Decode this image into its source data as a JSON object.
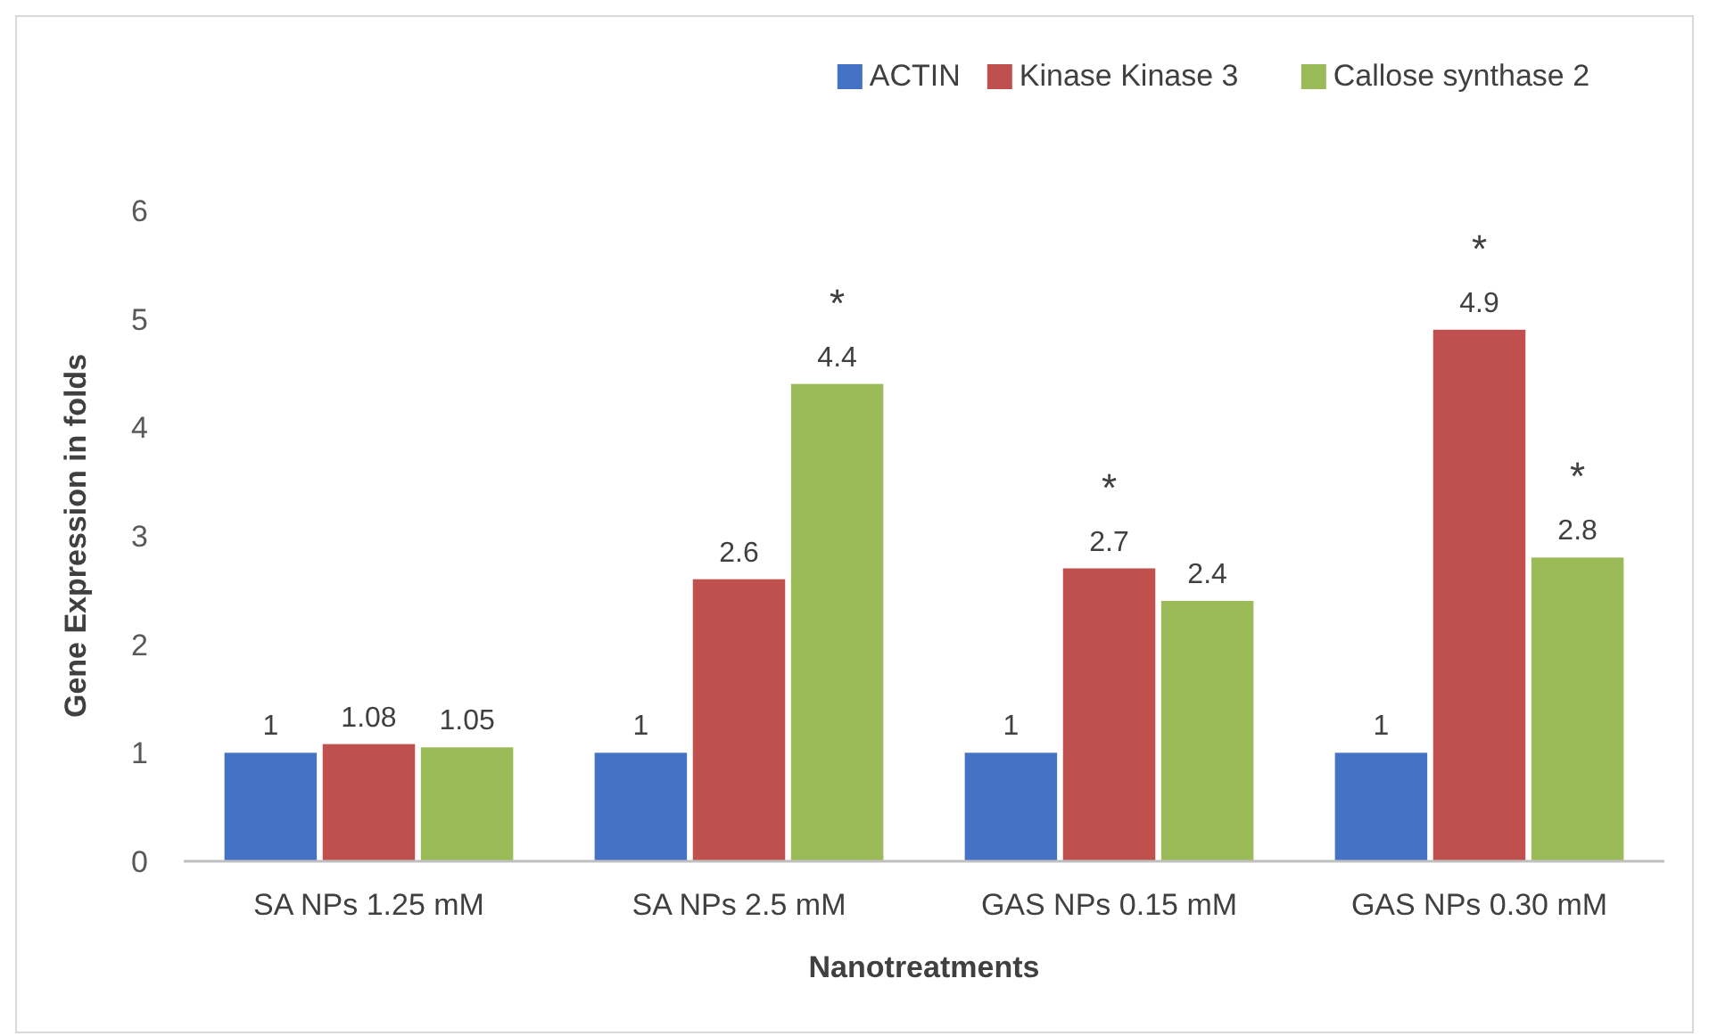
{
  "chart_data": {
    "type": "bar",
    "xlabel": "Nanotreatments",
    "ylabel": "Gene Expression in folds",
    "categories": [
      "SA NPs 1.25 mM",
      "SA NPs 2.5 mM",
      "GAS NPs 0.15 mM",
      "GAS NPs 0.30 mM"
    ],
    "series": [
      {
        "name": "ACTIN",
        "color": "#4472c4",
        "values": [
          1,
          1,
          1,
          1
        ]
      },
      {
        "name": "Kinase Kinase 3",
        "color": "#c0504d",
        "values": [
          1.08,
          2.6,
          2.7,
          4.9
        ]
      },
      {
        "name": "Callose synthase 2",
        "color": "#9bbb59",
        "values": [
          1.05,
          4.4,
          2.4,
          2.8
        ]
      }
    ],
    "ylim": [
      0,
      6
    ],
    "yticks": [
      0,
      1,
      2,
      3,
      4,
      5,
      6
    ],
    "data_labels": true,
    "legend": "top right",
    "annotations": [
      "*",
      "*",
      "*",
      "*"
    ]
  }
}
